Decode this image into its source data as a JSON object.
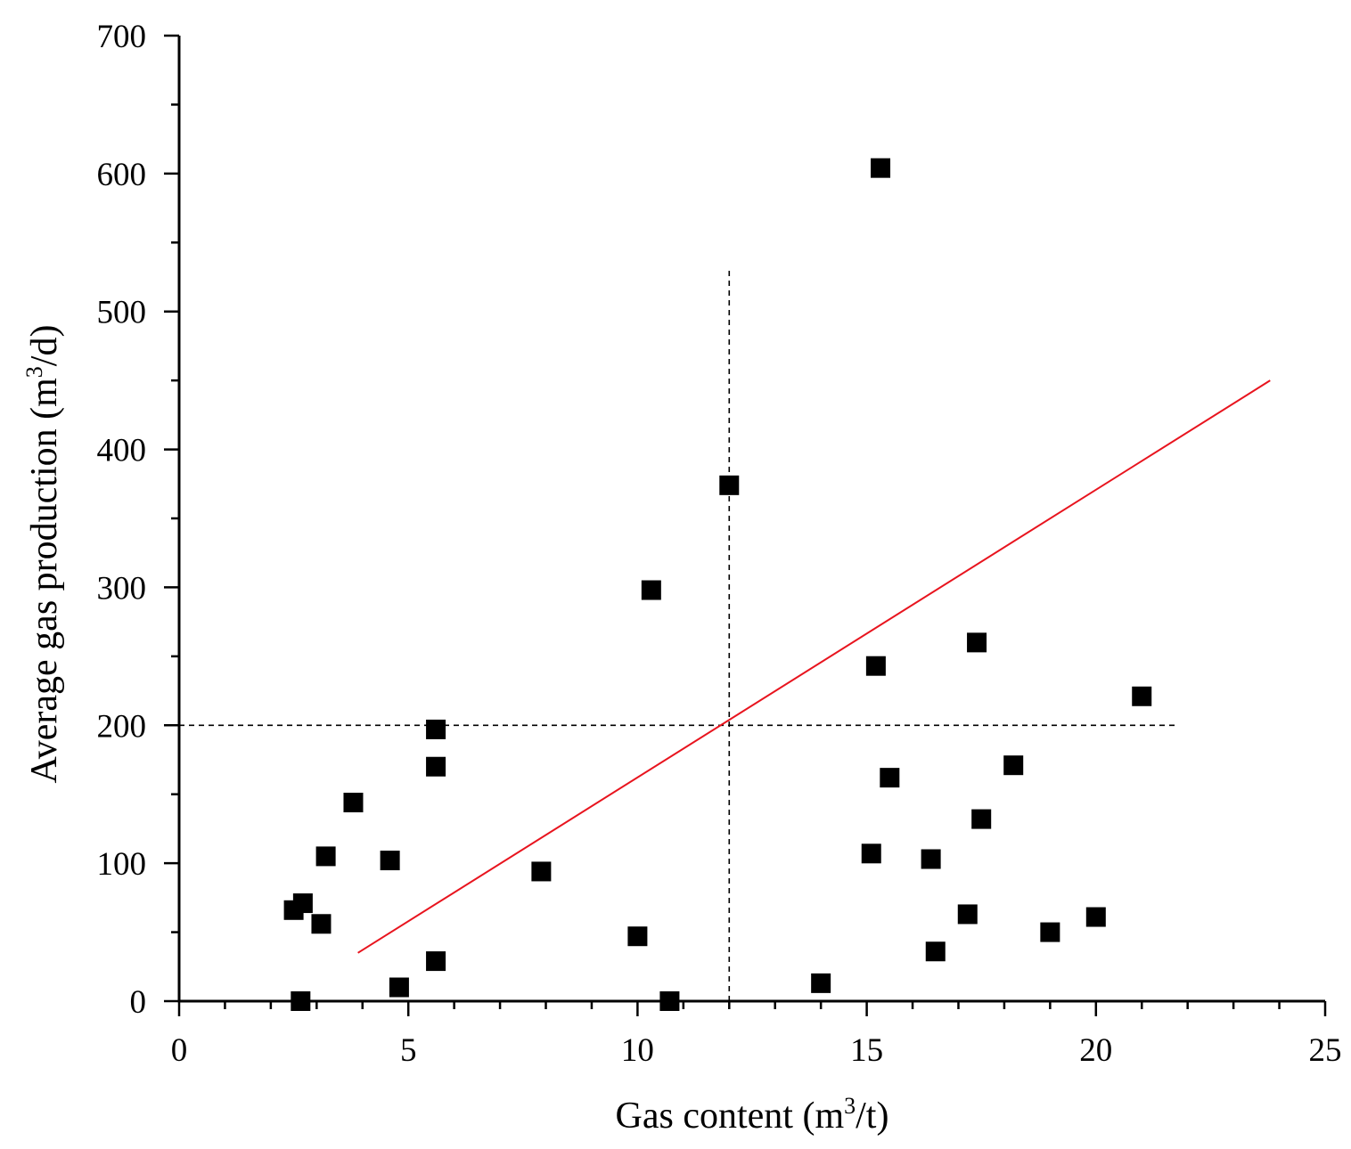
{
  "chart_data": {
    "type": "scatter",
    "xlabel_parts": [
      "Gas content (m",
      "3",
      "/t)"
    ],
    "ylabel_parts": [
      "Average gas production (m",
      "3",
      "/d)"
    ],
    "xlim": [
      0,
      25
    ],
    "ylim": [
      0,
      700
    ],
    "x_ticks": [
      0,
      5,
      10,
      15,
      20,
      25
    ],
    "y_ticks": [
      0,
      100,
      200,
      300,
      400,
      500,
      600,
      700
    ],
    "x_tick_labels": [
      "0",
      "5",
      "10",
      "15",
      "20",
      "25"
    ],
    "y_tick_labels": [
      "0",
      "100",
      "200",
      "300",
      "400",
      "500",
      "600",
      "700"
    ],
    "x_minor_step": 1,
    "y_minor_step": 50,
    "grid": false,
    "points": [
      {
        "x": 2.5,
        "y": 66
      },
      {
        "x": 2.7,
        "y": 71
      },
      {
        "x": 2.65,
        "y": 0
      },
      {
        "x": 3.1,
        "y": 56
      },
      {
        "x": 3.2,
        "y": 105
      },
      {
        "x": 3.8,
        "y": 144
      },
      {
        "x": 4.6,
        "y": 102
      },
      {
        "x": 4.8,
        "y": 10
      },
      {
        "x": 5.6,
        "y": 197
      },
      {
        "x": 5.6,
        "y": 170
      },
      {
        "x": 5.6,
        "y": 29
      },
      {
        "x": 7.9,
        "y": 94
      },
      {
        "x": 10.0,
        "y": 47
      },
      {
        "x": 10.3,
        "y": 298
      },
      {
        "x": 10.7,
        "y": 0
      },
      {
        "x": 12.0,
        "y": 374
      },
      {
        "x": 14.0,
        "y": 13
      },
      {
        "x": 15.1,
        "y": 107
      },
      {
        "x": 15.2,
        "y": 243
      },
      {
        "x": 15.3,
        "y": 604
      },
      {
        "x": 15.5,
        "y": 162
      },
      {
        "x": 16.4,
        "y": 103
      },
      {
        "x": 16.5,
        "y": 36
      },
      {
        "x": 17.2,
        "y": 63
      },
      {
        "x": 17.4,
        "y": 260
      },
      {
        "x": 17.5,
        "y": 132
      },
      {
        "x": 18.2,
        "y": 171
      },
      {
        "x": 19.0,
        "y": 50
      },
      {
        "x": 20.0,
        "y": 61
      },
      {
        "x": 21.0,
        "y": 221
      }
    ],
    "fit_line": {
      "x1": 3.9,
      "y1": 35,
      "x2": 23.8,
      "y2": 450,
      "color": "#e8141e"
    },
    "reference_lines": [
      {
        "orientation": "vertical",
        "x": 12.0,
        "y_from": 0,
        "y_to": 530
      },
      {
        "orientation": "horizontal",
        "y": 200,
        "x_from": 0,
        "x_to": 21.8
      }
    ],
    "marker_color": "#000000"
  }
}
